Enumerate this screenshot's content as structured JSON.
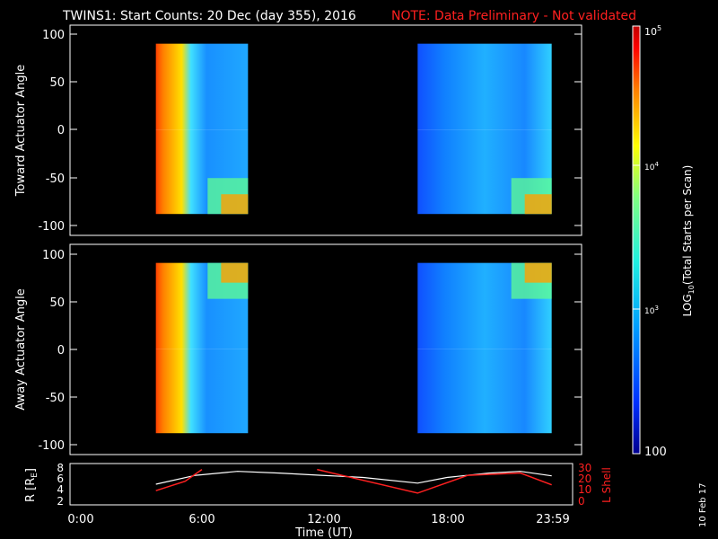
{
  "header": {
    "title": "TWINS1: Start Counts: 20 Dec (day 355), 2016",
    "note": "NOTE: Data Preliminary - Not validated",
    "note_color": "#ff2020"
  },
  "side_stamp": "10 Feb 17",
  "chart_data": [
    {
      "type": "heatmap",
      "ylabel": "Toward Actuator Angle",
      "ylim": [
        -100,
        100
      ],
      "yticks": [
        "100",
        "50",
        "0",
        "-50",
        "-100"
      ],
      "x_range_hours": [
        0,
        24
      ],
      "data_intervals_hours": [
        [
          4.1,
          8.5
        ],
        [
          16.6,
          23.0
        ]
      ],
      "angle_range": [
        -88,
        90
      ]
    },
    {
      "type": "heatmap",
      "ylabel": "Away Actuator Angle",
      "ylim": [
        -100,
        100
      ],
      "yticks": [
        "100",
        "50",
        "0",
        "-50",
        "-100"
      ],
      "x_range_hours": [
        0,
        24
      ],
      "data_intervals_hours": [
        [
          4.1,
          8.5
        ],
        [
          16.6,
          23.0
        ]
      ],
      "angle_range": [
        -88,
        90
      ]
    },
    {
      "type": "line",
      "ylabel": "R [R",
      "ylabel_sub": "E",
      "ylabel_close": "]",
      "yticks_left": [
        "8",
        "6",
        "4",
        "2"
      ],
      "yticks_right": [
        "30",
        "20",
        "10",
        "0"
      ],
      "ylabel_right": "L Shell",
      "xlabel": "Time (UT)",
      "xticks": [
        "0:00",
        "6:00",
        "12:00",
        "18:00",
        "23:59"
      ],
      "series": [
        {
          "color": "#ffffff",
          "x": [
            4.1,
            6,
            8,
            10,
            12,
            14,
            16.6,
            18,
            20,
            21.5,
            23.0
          ],
          "y": [
            5.0,
            6.6,
            7.3,
            7.0,
            6.6,
            6.2,
            5.2,
            6.2,
            7.0,
            7.3,
            6.5
          ]
        },
        {
          "color": "#ff2020",
          "x": [
            4.1,
            5.5,
            6.3,
            11.8,
            16.6,
            19,
            21.5,
            23.0
          ],
          "y": [
            12,
            20,
            30,
            30,
            10,
            25,
            27,
            17
          ]
        }
      ]
    }
  ],
  "colorbar": {
    "label": "LOG",
    "label_sub": "10",
    "label_rest": "(Total Starts per Scan)",
    "ticks": [
      "10^5",
      "10^4",
      "10^3",
      "100"
    ],
    "colors": [
      "#000090",
      "#0030ff",
      "#00a0ff",
      "#20f0e0",
      "#80ff80",
      "#ffff00",
      "#ff8000",
      "#ff0000",
      "#c00000"
    ]
  }
}
